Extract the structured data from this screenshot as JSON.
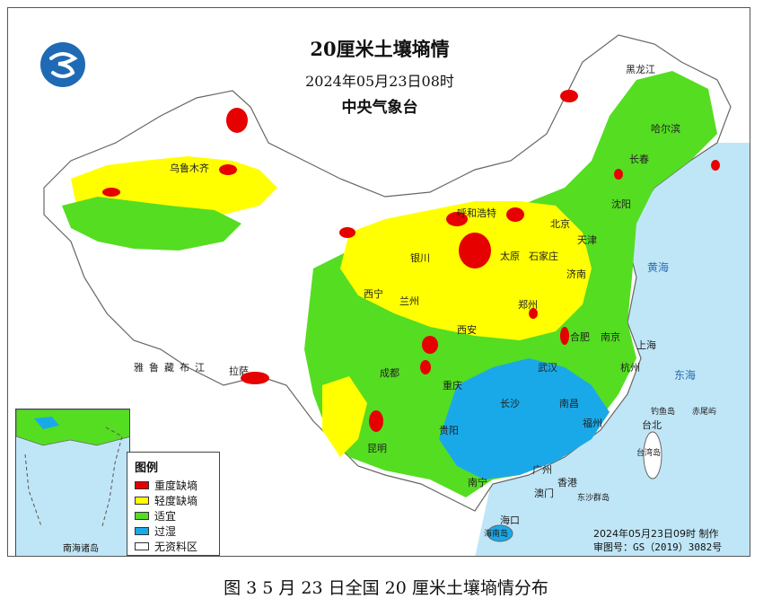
{
  "map": {
    "title": "20厘米土壤墒情",
    "date": "2024年05月23日08时",
    "agency": "中央气象台",
    "logo_icon": "cma-logo-icon"
  },
  "legend": {
    "title": "图例",
    "items": [
      {
        "label": "重度缺墒",
        "color": "#e60000"
      },
      {
        "label": "轻度缺墒",
        "color": "#ffff00"
      },
      {
        "label": "适宜",
        "color": "#55dd22"
      },
      {
        "label": "过湿",
        "color": "#1aa9e8"
      },
      {
        "label": "无资料区",
        "color": "#ffffff"
      }
    ]
  },
  "footer": {
    "production_time": "2024年05月23日09时 制作",
    "review_number": "审图号：GS（2019）3082号"
  },
  "inset": {
    "label": "南海诸岛"
  },
  "caption": "图 3 5 月 23 日全国 20 厘米土壤墒情分布",
  "cities": [
    "乌鲁木齐",
    "哈尔滨",
    "长春",
    "沈阳",
    "呼和浩特",
    "北京",
    "天津",
    "石家庄",
    "太原",
    "银川",
    "西宁",
    "兰州",
    "济南",
    "郑州",
    "西安",
    "合肥",
    "南京",
    "上海",
    "杭州",
    "武汉",
    "成都",
    "重庆",
    "长沙",
    "南昌",
    "贵阳",
    "昆明",
    "福州",
    "台北",
    "广州",
    "南宁",
    "香港",
    "澳门",
    "海口",
    "拉萨"
  ],
  "regions": [
    "雅鲁藏布江",
    "黑龙江",
    "黄海",
    "东海",
    "台湾岛",
    "海南岛",
    "东沙群岛",
    "钓鱼岛",
    "赤尾屿"
  ]
}
